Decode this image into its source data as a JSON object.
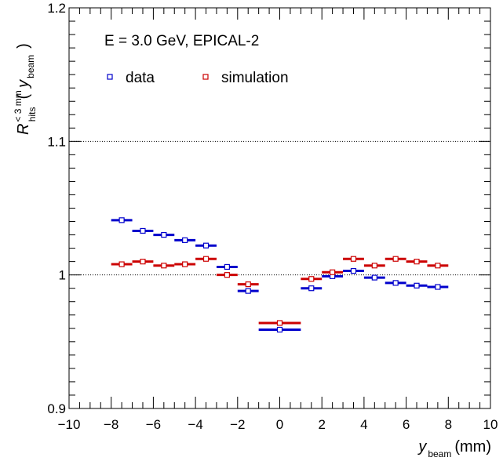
{
  "chart_data": {
    "type": "scatter",
    "annotation": "E = 3.0 GeV, EPICAL-2",
    "xlim": [
      -10,
      10
    ],
    "ylim": [
      0.9,
      1.2
    ],
    "x_major_ticks": [
      -10,
      -8,
      -6,
      -4,
      -2,
      0,
      2,
      4,
      6,
      8,
      10
    ],
    "x_tick_labels": [
      "−10",
      "−8",
      "−6",
      "−4",
      "−2",
      "0",
      "2",
      "4",
      "6",
      "8",
      "10"
    ],
    "y_tick_values": [
      0.9,
      1.0,
      1.1,
      1.2
    ],
    "y_tick_labels": [
      "0.9",
      "1",
      "1.1",
      "1.2"
    ],
    "reference_lines": [
      1.0,
      1.1
    ],
    "xlabel": {
      "main": "y",
      "sub": "beam",
      "unit": "(mm)"
    },
    "ylabel": {
      "main": "R",
      "sup": "< 3 mm",
      "sub": "hits",
      "paren_open": "(",
      "var": "y",
      "var_sub": "beam",
      "paren_close": ")"
    },
    "legend_position": "top-left",
    "series": [
      {
        "name": "data",
        "color": "#0000cc",
        "points": [
          {
            "x": -7.5,
            "xerr": 0.5,
            "y": 1.041
          },
          {
            "x": -6.5,
            "xerr": 0.5,
            "y": 1.033
          },
          {
            "x": -5.5,
            "xerr": 0.5,
            "y": 1.03
          },
          {
            "x": -4.5,
            "xerr": 0.5,
            "y": 1.026
          },
          {
            "x": -3.5,
            "xerr": 0.5,
            "y": 1.022
          },
          {
            "x": -2.5,
            "xerr": 0.5,
            "y": 1.006
          },
          {
            "x": -1.5,
            "xerr": 0.5,
            "y": 0.988
          },
          {
            "x": 0.0,
            "xerr": 1.0,
            "y": 0.959
          },
          {
            "x": 1.5,
            "xerr": 0.5,
            "y": 0.99
          },
          {
            "x": 2.5,
            "xerr": 0.5,
            "y": 0.999
          },
          {
            "x": 3.5,
            "xerr": 0.5,
            "y": 1.003
          },
          {
            "x": 4.5,
            "xerr": 0.5,
            "y": 0.998
          },
          {
            "x": 5.5,
            "xerr": 0.5,
            "y": 0.994
          },
          {
            "x": 6.5,
            "xerr": 0.5,
            "y": 0.992
          },
          {
            "x": 7.5,
            "xerr": 0.5,
            "y": 0.991
          }
        ]
      },
      {
        "name": "simulation",
        "color": "#cc0000",
        "points": [
          {
            "x": -7.5,
            "xerr": 0.5,
            "y": 1.008
          },
          {
            "x": -6.5,
            "xerr": 0.5,
            "y": 1.01
          },
          {
            "x": -5.5,
            "xerr": 0.5,
            "y": 1.007
          },
          {
            "x": -4.5,
            "xerr": 0.5,
            "y": 1.008
          },
          {
            "x": -3.5,
            "xerr": 0.5,
            "y": 1.012
          },
          {
            "x": -2.5,
            "xerr": 0.5,
            "y": 1.0
          },
          {
            "x": -1.5,
            "xerr": 0.5,
            "y": 0.993
          },
          {
            "x": 0.0,
            "xerr": 1.0,
            "y": 0.964
          },
          {
            "x": 1.5,
            "xerr": 0.5,
            "y": 0.997
          },
          {
            "x": 2.5,
            "xerr": 0.5,
            "y": 1.002
          },
          {
            "x": 3.5,
            "xerr": 0.5,
            "y": 1.012
          },
          {
            "x": 4.5,
            "xerr": 0.5,
            "y": 1.007
          },
          {
            "x": 5.5,
            "xerr": 0.5,
            "y": 1.012
          },
          {
            "x": 6.5,
            "xerr": 0.5,
            "y": 1.01
          },
          {
            "x": 7.5,
            "xerr": 0.5,
            "y": 1.007
          }
        ]
      }
    ]
  }
}
